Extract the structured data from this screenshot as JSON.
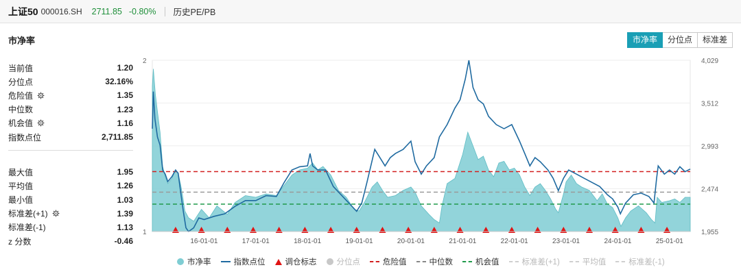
{
  "header": {
    "name": "上证50",
    "code": "000016.SH",
    "price": "2711.85",
    "change": "-0.80%",
    "menu": "历史PE/PB"
  },
  "section_title": "市净率",
  "buttons": [
    "市净率",
    "分位点",
    "标准差"
  ],
  "active_button": "市净率",
  "stats_top": [
    {
      "label": "当前值",
      "value": "1.20",
      "gear": false
    },
    {
      "label": "分位点",
      "value": "32.16%",
      "gear": false
    },
    {
      "label": "危险值",
      "value": "1.35",
      "gear": true
    },
    {
      "label": "中位数",
      "value": "1.23",
      "gear": false
    },
    {
      "label": "机会值",
      "value": "1.16",
      "gear": true
    },
    {
      "label": "指数点位",
      "value": "2,711.85",
      "gear": false
    }
  ],
  "stats_bottom": [
    {
      "label": "最大值",
      "value": "1.95",
      "gear": false
    },
    {
      "label": "平均值",
      "value": "1.26",
      "gear": false
    },
    {
      "label": "最小值",
      "value": "1.03",
      "gear": false
    },
    {
      "label": "标准差(+1)",
      "value": "1.39",
      "gear": true
    },
    {
      "label": "标准差(-1)",
      "value": "1.13",
      "gear": false
    },
    {
      "label": "z 分数",
      "value": "-0.46",
      "gear": false
    }
  ],
  "legend": [
    {
      "label": "市净率",
      "kind": "dot",
      "color": "#7fcdd3",
      "muted": false
    },
    {
      "label": "指数点位",
      "kind": "line",
      "color": "#1f6aa0",
      "muted": false
    },
    {
      "label": "调仓标志",
      "kind": "tri",
      "color": "#e01414",
      "muted": false
    },
    {
      "label": "分位点",
      "kind": "dot",
      "color": "#c8c8c8",
      "muted": true
    },
    {
      "label": "危险值",
      "kind": "dash",
      "color": "#d21f1f",
      "muted": false
    },
    {
      "label": "中位数",
      "kind": "dash",
      "color": "#888888",
      "muted": false
    },
    {
      "label": "机会值",
      "kind": "dash",
      "color": "#1f9a4a",
      "muted": false
    },
    {
      "label": "标准差(+1)",
      "kind": "dash",
      "color": "#d0d0d0",
      "muted": true
    },
    {
      "label": "平均值",
      "kind": "dash",
      "color": "#d0d0d0",
      "muted": true
    },
    {
      "label": "标准差(-1)",
      "kind": "dash",
      "color": "#d0d0d0",
      "muted": true
    }
  ],
  "colors": {
    "area": "#7fcdd3",
    "index_line": "#1f6aa0",
    "danger": "#d21f1f",
    "median": "#999999",
    "opportunity": "#1f9a4a",
    "triangle": "#e01414",
    "active_button": "#1a9fb5"
  },
  "chart_data": {
    "type": "area",
    "x_tick_labels": [
      "16-01-01",
      "17-01-01",
      "18-01-01",
      "19-01-01",
      "20-01-01",
      "21-01-01",
      "22-01-01",
      "23-01-01",
      "24-01-01",
      "25-01-01"
    ],
    "x_range": [
      2015.0,
      2025.4
    ],
    "y_left": {
      "range": [
        1,
        2
      ],
      "tick_labels": [
        "1",
        "2"
      ]
    },
    "y_right": {
      "range": [
        1955,
        4029
      ],
      "tick_labels": [
        "1,955",
        "2,474",
        "2,993",
        "3,512",
        "4,029"
      ]
    },
    "reference_lines": {
      "danger": 1.35,
      "median": 1.23,
      "opportunity": 1.16
    },
    "pb_series": [
      [
        2015.0,
        1.85
      ],
      [
        2015.02,
        1.95
      ],
      [
        2015.06,
        1.8
      ],
      [
        2015.1,
        1.7
      ],
      [
        2015.15,
        1.58
      ],
      [
        2015.2,
        1.38
      ],
      [
        2015.25,
        1.32
      ],
      [
        2015.3,
        1.28
      ],
      [
        2015.38,
        1.31
      ],
      [
        2015.45,
        1.36
      ],
      [
        2015.5,
        1.34
      ],
      [
        2015.55,
        1.27
      ],
      [
        2015.58,
        1.22
      ],
      [
        2015.63,
        1.12
      ],
      [
        2015.7,
        1.08
      ],
      [
        2015.8,
        1.06
      ],
      [
        2015.95,
        1.13
      ],
      [
        2016.1,
        1.08
      ],
      [
        2016.25,
        1.15
      ],
      [
        2016.45,
        1.1
      ],
      [
        2016.6,
        1.17
      ],
      [
        2016.8,
        1.21
      ],
      [
        2017.0,
        1.2
      ],
      [
        2017.2,
        1.22
      ],
      [
        2017.4,
        1.21
      ],
      [
        2017.55,
        1.27
      ],
      [
        2017.7,
        1.33
      ],
      [
        2017.85,
        1.36
      ],
      [
        2018.0,
        1.37
      ],
      [
        2018.1,
        1.4
      ],
      [
        2018.2,
        1.36
      ],
      [
        2018.3,
        1.38
      ],
      [
        2018.45,
        1.33
      ],
      [
        2018.6,
        1.24
      ],
      [
        2018.75,
        1.2
      ],
      [
        2018.9,
        1.13
      ],
      [
        2019.0,
        1.12
      ],
      [
        2019.1,
        1.17
      ],
      [
        2019.25,
        1.26
      ],
      [
        2019.35,
        1.29
      ],
      [
        2019.45,
        1.24
      ],
      [
        2019.55,
        1.2
      ],
      [
        2019.7,
        1.21
      ],
      [
        2019.85,
        1.24
      ],
      [
        2020.0,
        1.26
      ],
      [
        2020.08,
        1.23
      ],
      [
        2020.2,
        1.15
      ],
      [
        2020.35,
        1.1
      ],
      [
        2020.45,
        1.07
      ],
      [
        2020.55,
        1.05
      ],
      [
        2020.6,
        1.15
      ],
      [
        2020.7,
        1.28
      ],
      [
        2020.85,
        1.31
      ],
      [
        2021.0,
        1.45
      ],
      [
        2021.1,
        1.58
      ],
      [
        2021.2,
        1.5
      ],
      [
        2021.3,
        1.42
      ],
      [
        2021.4,
        1.44
      ],
      [
        2021.5,
        1.36
      ],
      [
        2021.6,
        1.32
      ],
      [
        2021.7,
        1.4
      ],
      [
        2021.8,
        1.41
      ],
      [
        2021.9,
        1.36
      ],
      [
        2022.0,
        1.37
      ],
      [
        2022.1,
        1.33
      ],
      [
        2022.2,
        1.26
      ],
      [
        2022.3,
        1.21
      ],
      [
        2022.4,
        1.26
      ],
      [
        2022.5,
        1.28
      ],
      [
        2022.6,
        1.24
      ],
      [
        2022.7,
        1.19
      ],
      [
        2022.8,
        1.13
      ],
      [
        2022.85,
        1.11
      ],
      [
        2022.95,
        1.22
      ],
      [
        2023.0,
        1.29
      ],
      [
        2023.1,
        1.33
      ],
      [
        2023.2,
        1.28
      ],
      [
        2023.3,
        1.26
      ],
      [
        2023.45,
        1.24
      ],
      [
        2023.6,
        1.18
      ],
      [
        2023.7,
        1.22
      ],
      [
        2023.8,
        1.16
      ],
      [
        2023.9,
        1.14
      ],
      [
        2024.0,
        1.08
      ],
      [
        2024.06,
        1.03
      ],
      [
        2024.15,
        1.08
      ],
      [
        2024.25,
        1.12
      ],
      [
        2024.4,
        1.15
      ],
      [
        2024.55,
        1.11
      ],
      [
        2024.65,
        1.07
      ],
      [
        2024.72,
        1.05
      ],
      [
        2024.76,
        1.2
      ],
      [
        2024.85,
        1.17
      ],
      [
        2025.0,
        1.18
      ],
      [
        2025.1,
        1.19
      ],
      [
        2025.2,
        1.17
      ],
      [
        2025.3,
        1.2
      ],
      [
        2025.4,
        1.2
      ]
    ],
    "index_series": [
      [
        2015.0,
        3200
      ],
      [
        2015.02,
        3650
      ],
      [
        2015.05,
        3320
      ],
      [
        2015.1,
        3100
      ],
      [
        2015.15,
        3000
      ],
      [
        2015.2,
        2700
      ],
      [
        2015.25,
        2650
      ],
      [
        2015.3,
        2560
      ],
      [
        2015.38,
        2620
      ],
      [
        2015.45,
        2700
      ],
      [
        2015.5,
        2660
      ],
      [
        2015.55,
        2420
      ],
      [
        2015.6,
        2200
      ],
      [
        2015.65,
        2000
      ],
      [
        2015.7,
        1955
      ],
      [
        2015.8,
        2000
      ],
      [
        2015.9,
        2120
      ],
      [
        2016.0,
        2100
      ],
      [
        2016.2,
        2140
      ],
      [
        2016.4,
        2170
      ],
      [
        2016.6,
        2260
      ],
      [
        2016.8,
        2330
      ],
      [
        2017.0,
        2330
      ],
      [
        2017.2,
        2390
      ],
      [
        2017.4,
        2380
      ],
      [
        2017.55,
        2550
      ],
      [
        2017.7,
        2700
      ],
      [
        2017.85,
        2740
      ],
      [
        2018.0,
        2750
      ],
      [
        2018.05,
        2900
      ],
      [
        2018.1,
        2750
      ],
      [
        2018.2,
        2700
      ],
      [
        2018.35,
        2700
      ],
      [
        2018.5,
        2500
      ],
      [
        2018.65,
        2400
      ],
      [
        2018.8,
        2300
      ],
      [
        2018.95,
        2200
      ],
      [
        2019.05,
        2300
      ],
      [
        2019.15,
        2550
      ],
      [
        2019.3,
        2950
      ],
      [
        2019.4,
        2850
      ],
      [
        2019.5,
        2750
      ],
      [
        2019.6,
        2850
      ],
      [
        2019.7,
        2900
      ],
      [
        2019.85,
        2950
      ],
      [
        2020.0,
        3050
      ],
      [
        2020.08,
        2800
      ],
      [
        2020.2,
        2650
      ],
      [
        2020.3,
        2750
      ],
      [
        2020.45,
        2850
      ],
      [
        2020.55,
        3100
      ],
      [
        2020.7,
        3250
      ],
      [
        2020.85,
        3450
      ],
      [
        2020.95,
        3550
      ],
      [
        2021.05,
        3800
      ],
      [
        2021.12,
        4029
      ],
      [
        2021.2,
        3700
      ],
      [
        2021.3,
        3550
      ],
      [
        2021.4,
        3500
      ],
      [
        2021.5,
        3350
      ],
      [
        2021.65,
        3250
      ],
      [
        2021.8,
        3200
      ],
      [
        2021.95,
        3250
      ],
      [
        2022.1,
        3050
      ],
      [
        2022.2,
        2900
      ],
      [
        2022.3,
        2750
      ],
      [
        2022.4,
        2850
      ],
      [
        2022.5,
        2800
      ],
      [
        2022.65,
        2700
      ],
      [
        2022.75,
        2600
      ],
      [
        2022.85,
        2450
      ],
      [
        2022.95,
        2600
      ],
      [
        2023.05,
        2700
      ],
      [
        2023.2,
        2650
      ],
      [
        2023.35,
        2600
      ],
      [
        2023.5,
        2550
      ],
      [
        2023.65,
        2500
      ],
      [
        2023.8,
        2400
      ],
      [
        2023.9,
        2350
      ],
      [
        2024.0,
        2250
      ],
      [
        2024.05,
        2170
      ],
      [
        2024.15,
        2300
      ],
      [
        2024.3,
        2400
      ],
      [
        2024.45,
        2420
      ],
      [
        2024.6,
        2380
      ],
      [
        2024.7,
        2300
      ],
      [
        2024.75,
        2600
      ],
      [
        2024.78,
        2750
      ],
      [
        2024.9,
        2650
      ],
      [
        2025.0,
        2700
      ],
      [
        2025.1,
        2650
      ],
      [
        2025.2,
        2740
      ],
      [
        2025.3,
        2680
      ],
      [
        2025.4,
        2712
      ]
    ],
    "rebalance_markers": [
      2015.45,
      2015.95,
      2016.45,
      2016.95,
      2017.45,
      2017.95,
      2018.45,
      2018.95,
      2019.45,
      2019.95,
      2020.45,
      2020.95,
      2021.45,
      2021.95,
      2022.45,
      2022.95,
      2023.45,
      2023.95,
      2024.45,
      2024.95
    ],
    "grid": true
  }
}
